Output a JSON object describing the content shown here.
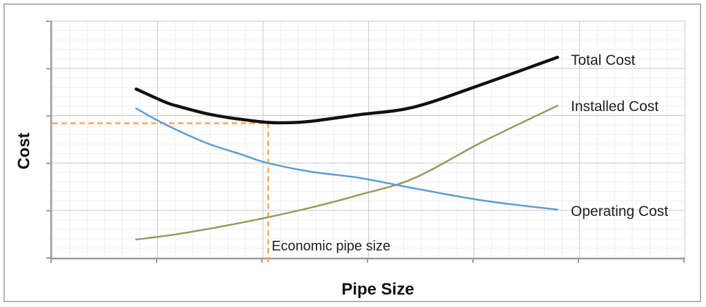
{
  "chart_data": {
    "type": "line",
    "title": "",
    "xlabel": "Pipe Size",
    "ylabel": "Cost",
    "x_range": [
      0,
      6
    ],
    "y_range": [
      0,
      5
    ],
    "tick_labels": "none",
    "grid": {
      "major": true,
      "minor": true,
      "major_color": "#c9c9c9",
      "minor_color": "#eeeeee"
    },
    "axis_color": "#9b9b9b",
    "legend_position": "inline-right-of-curves",
    "series": [
      {
        "name": "Total Cost",
        "color": "#111111",
        "width": 4.5,
        "points": [
          [
            0.8,
            3.56
          ],
          [
            1.08,
            3.28
          ],
          [
            1.21,
            3.19
          ],
          [
            1.47,
            3.04
          ],
          [
            1.67,
            2.96
          ],
          [
            1.8,
            2.92
          ],
          [
            2.03,
            2.86
          ],
          [
            2.2,
            2.85
          ],
          [
            2.45,
            2.88
          ],
          [
            2.91,
            3.02
          ],
          [
            3.43,
            3.18
          ],
          [
            4.09,
            3.67
          ],
          [
            4.79,
            4.23
          ]
        ]
      },
      {
        "name": "Installed Cost",
        "color": "#9e945e",
        "width": 2.5,
        "points": [
          [
            0.8,
            0.39
          ],
          [
            1.21,
            0.51
          ],
          [
            1.67,
            0.69
          ],
          [
            2.03,
            0.85
          ],
          [
            2.45,
            1.06
          ],
          [
            2.91,
            1.33
          ],
          [
            3.43,
            1.68
          ],
          [
            4.09,
            2.46
          ],
          [
            4.79,
            3.21
          ]
        ]
      },
      {
        "name": "Operating Cost",
        "color": "#5b9bd5",
        "width": 2.5,
        "points": [
          [
            0.8,
            3.15
          ],
          [
            1.08,
            2.81
          ],
          [
            1.47,
            2.42
          ],
          [
            1.8,
            2.18
          ],
          [
            2.03,
            2.01
          ],
          [
            2.45,
            1.82
          ],
          [
            2.91,
            1.69
          ],
          [
            3.43,
            1.47
          ],
          [
            4.09,
            1.21
          ],
          [
            4.79,
            1.02
          ]
        ]
      }
    ],
    "annotation": {
      "label": "Economic pipe size",
      "x": 2.05,
      "y": 2.84,
      "line_color": "#f9a45c",
      "line_style": "dashed"
    }
  },
  "frame": {
    "border_color": "#b3b3b3",
    "background": "#ffffff"
  }
}
